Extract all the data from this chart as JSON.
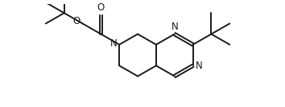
{
  "bg_color": "#ffffff",
  "line_color": "#1a1a1a",
  "line_width": 1.4,
  "font_size": 8.5,
  "figsize": [
    3.54,
    1.34
  ],
  "dpi": 100,
  "xlim": [
    0,
    10
  ],
  "ylim": [
    0,
    3.8
  ],
  "bl": 0.78
}
